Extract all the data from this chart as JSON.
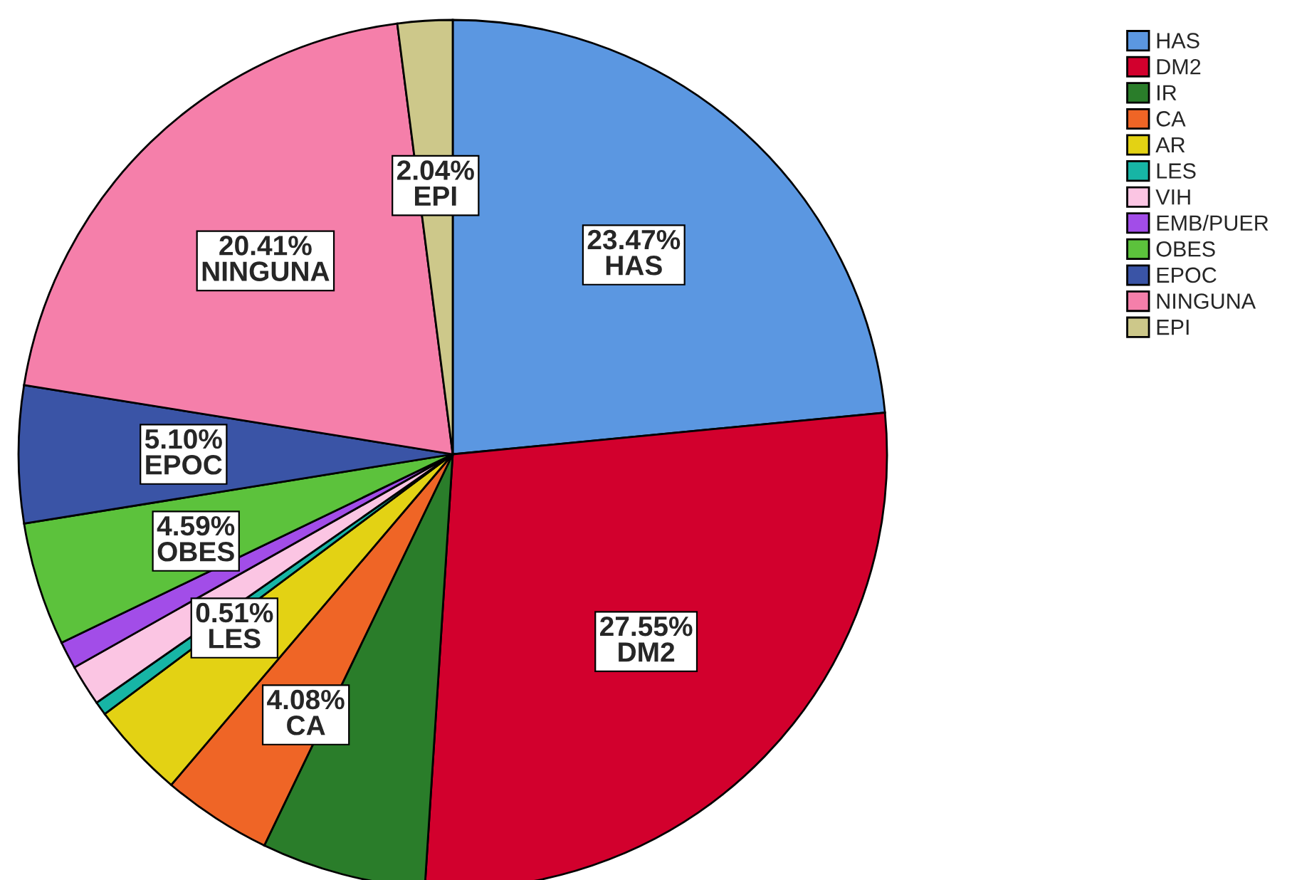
{
  "chart_data": {
    "type": "pie",
    "categories": [
      "HAS",
      "DM2",
      "IR",
      "CA",
      "AR",
      "LES",
      "VIH",
      "EMB/PUER",
      "OBES",
      "EPOC",
      "NINGUNA",
      "EPI"
    ],
    "values": [
      23.47,
      27.55,
      6.12,
      4.08,
      3.57,
      0.51,
      1.53,
      1.02,
      4.59,
      5.1,
      20.41,
      2.04
    ],
    "colors": [
      "#5b97e1",
      "#d2002d",
      "#2a7d2a",
      "#ef6526",
      "#e3d214",
      "#17b5a5",
      "#fbc5e3",
      "#a24de8",
      "#5cc23c",
      "#3a54a6",
      "#f57faa",
      "#cdc88a"
    ],
    "value_labels": [
      "23.47%",
      "27.55%",
      null,
      "4.08%",
      null,
      "0.51%",
      null,
      null,
      "4.59%",
      "5.10%",
      "20.41%",
      "2.04%"
    ],
    "legend": "top right"
  }
}
